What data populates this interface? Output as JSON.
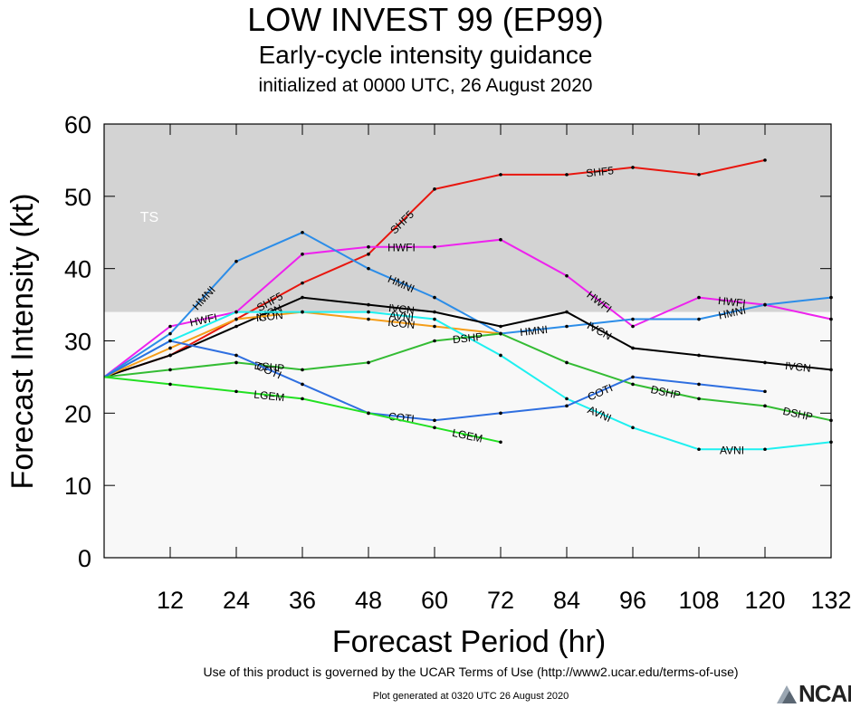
{
  "header": {
    "title": "LOW INVEST 99 (EP99)",
    "subtitle": "Early-cycle intensity guidance",
    "subtitle2": "initialized at 0000 UTC, 26 August 2020"
  },
  "footer": {
    "terms": "Use of this product is governed by the UCAR Terms of Use (http://www2.ucar.edu/terms-of-use)",
    "generated": "Plot generated at 0320 UTC   26 August 2020",
    "logo": "NCAR"
  },
  "colors": {
    "ts_band": "#d3d3d3",
    "plot_bg": "#f8f8f8",
    "SHF5": "#e8160e",
    "HWFI": "#ee22ee",
    "HMNI": "#2c8de8",
    "IVCN": "#000000",
    "ICON": "#f59d19",
    "AVNI": "#1ef0f0",
    "DSHP": "#34bc34",
    "COTI": "#2f6fe0",
    "LGEM": "#22e022"
  },
  "chart_data": {
    "type": "line",
    "xlabel": "Forecast Period (hr)",
    "ylabel": "Forecast Intensity (kt)",
    "xlim": [
      0,
      132
    ],
    "ylim": [
      0,
      60
    ],
    "xticks": [
      12,
      24,
      36,
      48,
      60,
      72,
      84,
      96,
      108,
      120,
      132
    ],
    "yticks": [
      0,
      10,
      20,
      30,
      40,
      50,
      60
    ],
    "band": {
      "label": "TS",
      "from": 34,
      "to": 60
    },
    "series": [
      {
        "name": "SHF5",
        "x": [
          0,
          12,
          24,
          36,
          48,
          60,
          72,
          84,
          96,
          108,
          120
        ],
        "y": [
          25,
          28,
          33,
          38,
          42,
          51,
          53,
          53,
          54,
          53,
          55
        ],
        "label_at": [
          30,
          54,
          90
        ]
      },
      {
        "name": "HWFI",
        "x": [
          0,
          12,
          24,
          36,
          48,
          60,
          72,
          84,
          96,
          108,
          120,
          132
        ],
        "y": [
          25,
          32,
          34,
          42,
          43,
          43,
          44,
          39,
          32,
          36,
          35,
          33
        ],
        "label_at": [
          18,
          54,
          90,
          114
        ]
      },
      {
        "name": "HMNI",
        "x": [
          0,
          12,
          24,
          36,
          48,
          60,
          72,
          84,
          96,
          108,
          120,
          132
        ],
        "y": [
          25,
          31,
          41,
          45,
          40,
          36,
          31,
          32,
          33,
          33,
          35,
          36
        ],
        "label_at": [
          18,
          54,
          78,
          114
        ]
      },
      {
        "name": "IVCN",
        "x": [
          0,
          12,
          24,
          36,
          48,
          60,
          72,
          84,
          96,
          108,
          120,
          132
        ],
        "y": [
          25,
          28,
          32,
          36,
          35,
          34,
          32,
          34,
          29,
          28,
          27,
          26
        ],
        "label_at": [
          30,
          54,
          90,
          126
        ]
      },
      {
        "name": "ICON",
        "x": [
          0,
          12,
          24,
          36,
          48,
          60,
          72
        ],
        "y": [
          25,
          29,
          33,
          34,
          33,
          32,
          31
        ],
        "label_at": [
          30,
          54
        ]
      },
      {
        "name": "AVNI",
        "x": [
          0,
          12,
          24,
          36,
          48,
          60,
          72,
          84,
          96,
          108,
          120,
          132
        ],
        "y": [
          25,
          30,
          34,
          34,
          34,
          33,
          28,
          22,
          18,
          15,
          15,
          16
        ],
        "label_at": [
          54,
          90,
          114
        ]
      },
      {
        "name": "DSHP",
        "x": [
          0,
          12,
          24,
          36,
          48,
          60,
          72,
          84,
          96,
          108,
          120,
          132
        ],
        "y": [
          25,
          26,
          27,
          26,
          27,
          30,
          31,
          27,
          24,
          22,
          21,
          19
        ],
        "label_at": [
          30,
          66,
          102,
          126
        ]
      },
      {
        "name": "COTI",
        "x": [
          0,
          12,
          24,
          36,
          48,
          60,
          72,
          84,
          96,
          108,
          120
        ],
        "y": [
          25,
          30,
          28,
          24,
          20,
          19,
          20,
          21,
          25,
          24,
          23
        ],
        "label_at": [
          30,
          54,
          90
        ]
      },
      {
        "name": "LGEM",
        "x": [
          0,
          12,
          24,
          36,
          48,
          60,
          72
        ],
        "y": [
          25,
          24,
          23,
          22,
          20,
          18,
          16
        ],
        "label_at": [
          30,
          66
        ]
      }
    ]
  }
}
